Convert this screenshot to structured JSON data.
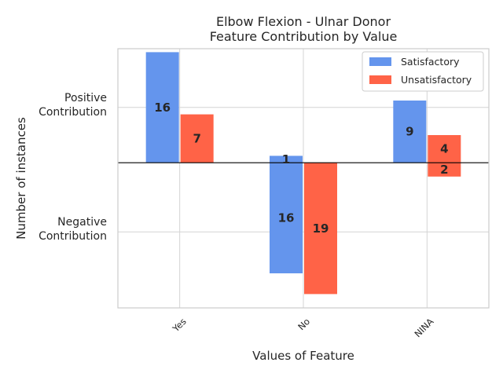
{
  "chart_data": {
    "type": "bar",
    "title": "Elbow Flexion - Ulnar Donor",
    "subtitle": "Feature Contribution by Value",
    "xlabel": "Values of Feature",
    "ylabel": "Number of instances",
    "categories": [
      "Yes",
      "No",
      "NINA"
    ],
    "ytick_labels": [
      "Positive\nContribution",
      "Negative\nContribution"
    ],
    "series": [
      {
        "name": "Satisfactory",
        "color": "#6495ed",
        "values": [
          16,
          -16,
          9
        ],
        "labels": [
          "16",
          "16",
          "9"
        ]
      },
      {
        "name": "Unsatisfactory",
        "color": "#ff6347",
        "values": [
          7,
          -19,
          -2
        ],
        "labels": [
          "7",
          "19",
          "2"
        ]
      }
    ],
    "extra_segments": [
      {
        "category": "No",
        "series": "Satisfactory",
        "value": 1,
        "label": "1"
      },
      {
        "category": "NINA",
        "series": "Unsatisfactory",
        "value": 4,
        "label": "4"
      }
    ],
    "ylim": [
      -21,
      16.5
    ],
    "ytick_values": [
      8,
      -10
    ],
    "grid": true,
    "legend_position": "upper-right"
  }
}
